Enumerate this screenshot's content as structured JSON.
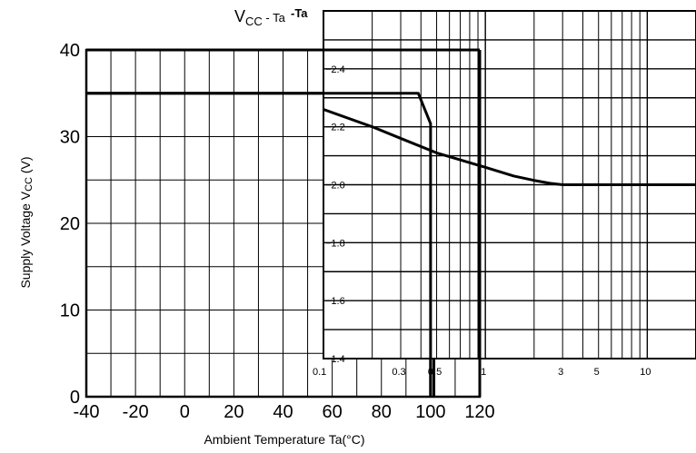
{
  "chart_data": [
    {
      "type": "line",
      "title": "VCC - Ta",
      "title_parts": {
        "main": "V",
        "sub": "CC",
        "suffix": " - Ta"
      },
      "xlabel": "Ambient Temperature Ta(°C)",
      "ylabel": "Supply Voltage VCC (V)",
      "ylabel_parts": {
        "main": "Supply Voltage V",
        "sub": "CC",
        "suffix": " (V)"
      },
      "xlim": [
        -40,
        120
      ],
      "ylim": [
        0,
        40
      ],
      "x_ticks": [
        "-40",
        "-20",
        "0",
        "20",
        "40",
        "60",
        "80",
        "100",
        "120"
      ],
      "y_ticks": [
        "0",
        "10",
        "20",
        "30",
        "40"
      ],
      "grid": true,
      "series": [
        {
          "x": [
            -40,
            95,
            100,
            100
          ],
          "y": [
            35,
            35,
            31.5,
            0
          ]
        }
      ]
    },
    {
      "type": "line",
      "title": "",
      "overlapped_title": "-Ta",
      "x_scale": "log",
      "xlim": [
        0.1,
        20
      ],
      "ylim": [
        -1.4,
        -2.6
      ],
      "x_ticks": [
        "0.1",
        "0.3",
        "0.5",
        "1",
        "3",
        "5",
        "10"
      ],
      "y_ticks": [
        "−1.4",
        "−1.6",
        "−1.8",
        "−2.0",
        "−2.2",
        "−2.4"
      ],
      "grid": true,
      "series": [
        {
          "x": [
            0.1,
            0.2,
            0.3,
            0.5,
            1.0,
            1.5,
            2.0,
            2.5,
            3.0,
            5.0,
            10.0,
            20.0
          ],
          "y": [
            -2.26,
            -2.2,
            -2.16,
            -2.11,
            -2.06,
            -2.03,
            -2.015,
            -2.005,
            -2.0,
            -2.0,
            -2.0,
            -2.0
          ]
        }
      ]
    }
  ]
}
